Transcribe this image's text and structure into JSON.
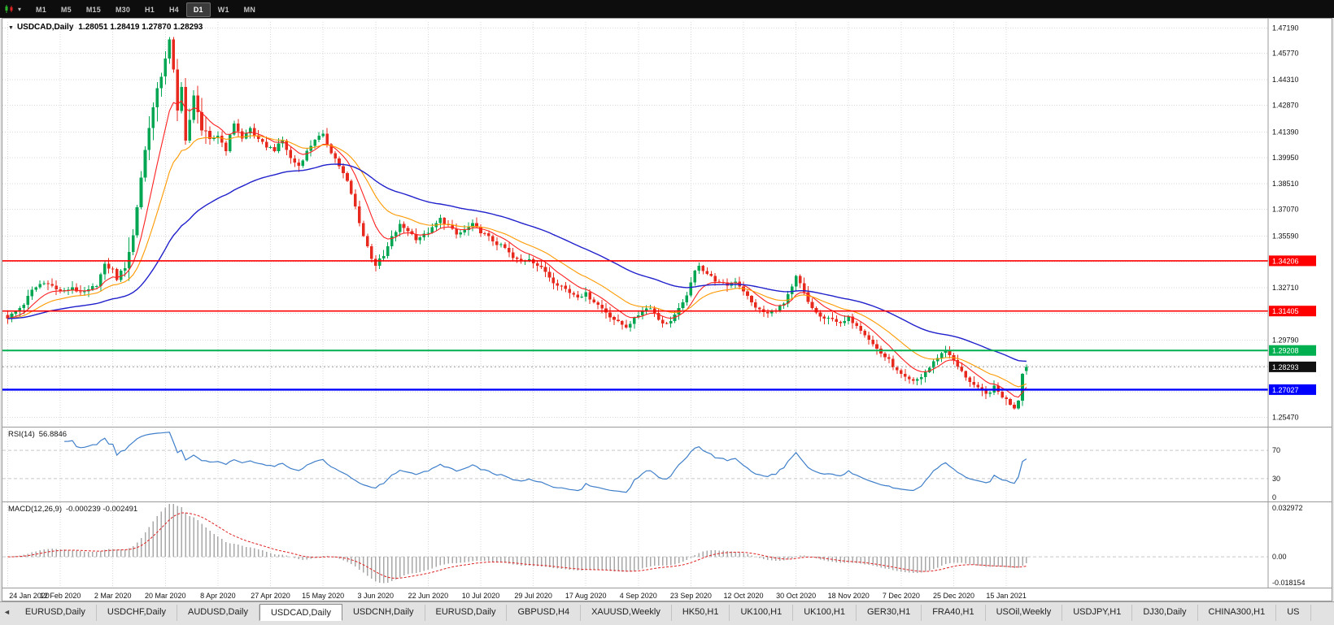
{
  "toolbar": {
    "timeframes": [
      "M1",
      "M5",
      "M15",
      "M30",
      "H1",
      "H4",
      "D1",
      "W1",
      "MN"
    ],
    "active_timeframe": "D1",
    "chart_type_icon": "candlestick-chart",
    "dropdown_arrow": "▾"
  },
  "chart": {
    "menu_arrow": "▼",
    "symbol_period": "USDCAD,Daily",
    "ohlc_text": "1.28051 1.28419 1.27870 1.28293"
  },
  "rsi_panel": {
    "label": "RSI(14)",
    "value": "56.8846",
    "axis_labels": [
      "70",
      "30",
      "0"
    ],
    "levels": [
      70,
      30
    ],
    "line_color": "#3f7fca"
  },
  "macd_panel": {
    "label": "MACD(12,26,9)",
    "values": "-0.000239 -0.002491",
    "axis_labels": {
      "max": "0.032972",
      "zero": "0.00",
      "min": "-0.018154"
    },
    "histogram_color": "#a8a8a8",
    "signal_color": "#e02020"
  },
  "chart_data": {
    "type": "candlestick",
    "symbol": "USDCAD",
    "timeframe": "Daily",
    "last_ohlc": {
      "open": 1.28051,
      "high": 1.28419,
      "low": 1.2787,
      "close": 1.28293
    },
    "bar_count": 253,
    "price_range": [
      1.2505,
      1.4752
    ],
    "macd_range": [
      -0.018154,
      0.032972
    ],
    "max_wick": 1.4668,
    "min_wick": 1.259,
    "price_axis_ticks": [
      1.4719,
      1.4577,
      1.4431,
      1.4287,
      1.4139,
      1.3995,
      1.3851,
      1.3707,
      1.3559,
      1.3415,
      1.3271,
      1.3127,
      1.2979,
      1.2835,
      1.2691,
      1.2547
    ],
    "horizontal_lines": [
      {
        "price": 1.34206,
        "label": "1.34206",
        "color": "#ff0000",
        "width": 1.6
      },
      {
        "price": 1.31405,
        "label": "1.31405",
        "color": "#ff0000",
        "width": 1.6
      },
      {
        "price": 1.29208,
        "label": "1.29208",
        "color": "#00b050",
        "width": 2
      },
      {
        "price": 1.27027,
        "label": "1.27027",
        "color": "#0000ff",
        "width": 2.4
      }
    ],
    "current_price": {
      "value": 1.28293,
      "label": "1.28293",
      "badge_color": "#111111"
    },
    "candle_up_color": "#00a651",
    "candle_down_color": "#e8291d",
    "moving_averages": [
      {
        "period": 9,
        "color": "#ff2020",
        "width": 1.1
      },
      {
        "period": 20,
        "color": "#ff9900",
        "width": 1.1
      },
      {
        "period": 55,
        "color": "#2020cc",
        "width": 1.4
      }
    ],
    "noise": 0.0021,
    "x_labels": [
      [
        0,
        "24 Jan 2020"
      ],
      [
        13,
        "12 Feb 2020"
      ],
      [
        26,
        "2 Mar 2020"
      ],
      [
        39,
        "20 Mar 2020"
      ],
      [
        52,
        "8 Apr 2020"
      ],
      [
        65,
        "27 Apr 2020"
      ],
      [
        78,
        "15 May 2020"
      ],
      [
        91,
        "3 Jun 2020"
      ],
      [
        104,
        "22 Jun 2020"
      ],
      [
        117,
        "10 Jul 2020"
      ],
      [
        130,
        "29 Jul 2020"
      ],
      [
        143,
        "17 Aug 2020"
      ],
      [
        156,
        "4 Sep 2020"
      ],
      [
        169,
        "23 Sep 2020"
      ],
      [
        182,
        "12 Oct 2020"
      ],
      [
        195,
        "30 Oct 2020"
      ],
      [
        208,
        "18 Nov 2020"
      ],
      [
        221,
        "7 Dec 2020"
      ],
      [
        234,
        "25 Dec 2020"
      ],
      [
        247,
        "15 Jan 2021"
      ]
    ],
    "price_path": [
      [
        0,
        1.3105
      ],
      [
        2,
        1.3135
      ],
      [
        4,
        1.318
      ],
      [
        6,
        1.3255
      ],
      [
        8,
        1.329
      ],
      [
        10,
        1.33
      ],
      [
        12,
        1.326
      ],
      [
        14,
        1.325
      ],
      [
        16,
        1.3275
      ],
      [
        18,
        1.3235
      ],
      [
        20,
        1.3255
      ],
      [
        22,
        1.329
      ],
      [
        24,
        1.3395
      ],
      [
        26,
        1.337
      ],
      [
        27,
        1.332
      ],
      [
        29,
        1.3395
      ],
      [
        31,
        1.356
      ],
      [
        33,
        1.389
      ],
      [
        35,
        1.418
      ],
      [
        37,
        1.436
      ],
      [
        39,
        1.456
      ],
      [
        40,
        1.464
      ],
      [
        41,
        1.447
      ],
      [
        42,
        1.425
      ],
      [
        43,
        1.441
      ],
      [
        44,
        1.409
      ],
      [
        45,
        1.419
      ],
      [
        46,
        1.433
      ],
      [
        47,
        1.427
      ],
      [
        48,
        1.415
      ],
      [
        50,
        1.409
      ],
      [
        52,
        1.412
      ],
      [
        54,
        1.404
      ],
      [
        56,
        1.419
      ],
      [
        58,
        1.41
      ],
      [
        60,
        1.416
      ],
      [
        62,
        1.409
      ],
      [
        64,
        1.406
      ],
      [
        66,
        1.404
      ],
      [
        68,
        1.409
      ],
      [
        70,
        1.399
      ],
      [
        72,
        1.395
      ],
      [
        74,
        1.403
      ],
      [
        76,
        1.41
      ],
      [
        78,
        1.412
      ],
      [
        80,
        1.403
      ],
      [
        82,
        1.395
      ],
      [
        84,
        1.386
      ],
      [
        86,
        1.372
      ],
      [
        88,
        1.356
      ],
      [
        90,
        1.344
      ],
      [
        91,
        1.34
      ],
      [
        93,
        1.3445
      ],
      [
        95,
        1.355
      ],
      [
        97,
        1.362
      ],
      [
        99,
        1.359
      ],
      [
        101,
        1.3545
      ],
      [
        103,
        1.3565
      ],
      [
        105,
        1.36
      ],
      [
        107,
        1.3655
      ],
      [
        109,
        1.3615
      ],
      [
        111,
        1.3565
      ],
      [
        113,
        1.359
      ],
      [
        115,
        1.362
      ],
      [
        117,
        1.3585
      ],
      [
        119,
        1.355
      ],
      [
        121,
        1.3515
      ],
      [
        123,
        1.349
      ],
      [
        125,
        1.3435
      ],
      [
        127,
        1.3415
      ],
      [
        129,
        1.3435
      ],
      [
        131,
        1.3395
      ],
      [
        133,
        1.336
      ],
      [
        135,
        1.3305
      ],
      [
        137,
        1.328
      ],
      [
        139,
        1.3245
      ],
      [
        141,
        1.3225
      ],
      [
        143,
        1.3235
      ],
      [
        145,
        1.3195
      ],
      [
        147,
        1.3155
      ],
      [
        149,
        1.3115
      ],
      [
        151,
        1.3075
      ],
      [
        153,
        1.3055
      ],
      [
        155,
        1.3095
      ],
      [
        157,
        1.3145
      ],
      [
        159,
        1.3165
      ],
      [
        161,
        1.3095
      ],
      [
        163,
        1.3065
      ],
      [
        165,
        1.312
      ],
      [
        167,
        1.318
      ],
      [
        169,
        1.329
      ],
      [
        170,
        1.336
      ],
      [
        171,
        1.34
      ],
      [
        172,
        1.337
      ],
      [
        174,
        1.333
      ],
      [
        176,
        1.3295
      ],
      [
        178,
        1.3285
      ],
      [
        180,
        1.331
      ],
      [
        182,
        1.3255
      ],
      [
        184,
        1.3185
      ],
      [
        186,
        1.3145
      ],
      [
        188,
        1.3125
      ],
      [
        190,
        1.315
      ],
      [
        192,
        1.318
      ],
      [
        194,
        1.327
      ],
      [
        195,
        1.333
      ],
      [
        196,
        1.329
      ],
      [
        198,
        1.319
      ],
      [
        200,
        1.313
      ],
      [
        202,
        1.309
      ],
      [
        204,
        1.3105
      ],
      [
        206,
        1.3065
      ],
      [
        208,
        1.31
      ],
      [
        210,
        1.3065
      ],
      [
        212,
        1.3015
      ],
      [
        214,
        1.2955
      ],
      [
        216,
        1.2905
      ],
      [
        218,
        1.2865
      ],
      [
        220,
        1.2805
      ],
      [
        222,
        1.2765
      ],
      [
        224,
        1.2745
      ],
      [
        226,
        1.2775
      ],
      [
        228,
        1.2825
      ],
      [
        230,
        1.2885
      ],
      [
        232,
        1.2925
      ],
      [
        233,
        1.29
      ],
      [
        234,
        1.286
      ],
      [
        236,
        1.28
      ],
      [
        238,
        1.275
      ],
      [
        240,
        1.2705
      ],
      [
        242,
        1.2675
      ],
      [
        244,
        1.2715
      ],
      [
        246,
        1.2665
      ],
      [
        248,
        1.2625
      ],
      [
        249,
        1.2605
      ],
      [
        250,
        1.2645
      ],
      [
        251,
        1.28
      ],
      [
        252,
        1.28293
      ]
    ]
  },
  "tab_bar": {
    "scroll_left_icon": "◄",
    "active_index": 3,
    "tabs": [
      "EURUSD,Daily",
      "USDCHF,Daily",
      "AUDUSD,Daily",
      "USDCAD,Daily",
      "USDCNH,Daily",
      "EURUSD,Daily",
      "GBPUSD,H4",
      "XAUUSD,Weekly",
      "HK50,H1",
      "UK100,H1",
      "UK100,H1",
      "GER30,H1",
      "FRA40,H1",
      "USOil,Weekly",
      "USDJPY,H1",
      "DJ30,Daily",
      "CHINA300,H1",
      "US"
    ]
  }
}
